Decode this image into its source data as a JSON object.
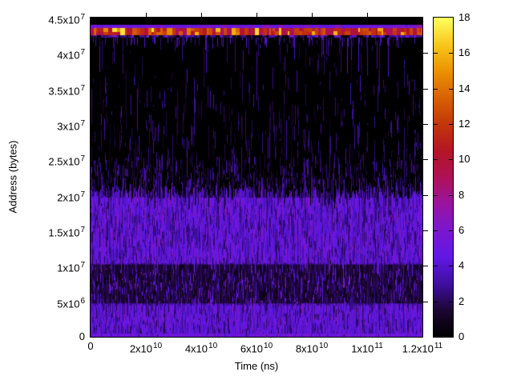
{
  "figure": {
    "background": "#ffffff",
    "text_color": "#000000"
  },
  "chart_data": {
    "type": "heatmap",
    "title": "",
    "xlabel": "Time (ns)",
    "ylabel": "Address (bytes)",
    "xlim": [
      0,
      120000000000
    ],
    "ylim": [
      0,
      45000000
    ],
    "zlim": [
      0,
      18
    ],
    "grid": false,
    "legend_position": "right-colorbar",
    "x_ticks": [
      {
        "value": 0,
        "text": "0",
        "sup": ""
      },
      {
        "value": 20000000000,
        "text": "2x10",
        "sup": "10"
      },
      {
        "value": 40000000000,
        "text": "4x10",
        "sup": "10"
      },
      {
        "value": 60000000000,
        "text": "6x10",
        "sup": "10"
      },
      {
        "value": 80000000000,
        "text": "8x10",
        "sup": "10"
      },
      {
        "value": 100000000000,
        "text": "1x10",
        "sup": "11"
      },
      {
        "value": 120000000000,
        "text": "1.2x10",
        "sup": "11"
      }
    ],
    "y_ticks": [
      {
        "value": 0,
        "text": "0",
        "sup": ""
      },
      {
        "value": 5000000,
        "text": "5x10",
        "sup": "6"
      },
      {
        "value": 10000000,
        "text": "1x10",
        "sup": "7"
      },
      {
        "value": 15000000,
        "text": "1.5x10",
        "sup": "7"
      },
      {
        "value": 20000000,
        "text": "2x10",
        "sup": "7"
      },
      {
        "value": 25000000,
        "text": "2.5x10",
        "sup": "7"
      },
      {
        "value": 30000000,
        "text": "3x10",
        "sup": "7"
      },
      {
        "value": 35000000,
        "text": "3.5x10",
        "sup": "7"
      },
      {
        "value": 40000000,
        "text": "4x10",
        "sup": "7"
      },
      {
        "value": 45000000,
        "text": "4.5x10",
        "sup": "7"
      }
    ],
    "colorbar": {
      "ticks": [
        {
          "value": 0,
          "text": "0"
        },
        {
          "value": 2,
          "text": "2"
        },
        {
          "value": 4,
          "text": "4"
        },
        {
          "value": 6,
          "text": "6"
        },
        {
          "value": 8,
          "text": "8"
        },
        {
          "value": 10,
          "text": "10"
        },
        {
          "value": 12,
          "text": "12"
        },
        {
          "value": 14,
          "text": "14"
        },
        {
          "value": 16,
          "text": "16"
        },
        {
          "value": 18,
          "text": "18"
        }
      ],
      "palette": [
        {
          "v": 0,
          "c": "#000000"
        },
        {
          "v": 1.5,
          "c": "#1c0633"
        },
        {
          "v": 3,
          "c": "#3f0fa0"
        },
        {
          "v": 4.5,
          "c": "#6118e6"
        },
        {
          "v": 6,
          "c": "#7b16cf"
        },
        {
          "v": 7.5,
          "c": "#9a14a0"
        },
        {
          "v": 9,
          "c": "#ae1155"
        },
        {
          "v": 10.5,
          "c": "#b41425"
        },
        {
          "v": 12,
          "c": "#c33709"
        },
        {
          "v": 13.5,
          "c": "#d76205"
        },
        {
          "v": 15,
          "c": "#eb9302"
        },
        {
          "v": 16.5,
          "c": "#f8c81c"
        },
        {
          "v": 18,
          "c": "#ffff60"
        }
      ]
    },
    "noise_seed": 7,
    "regions": [
      {
        "type": "streaks",
        "name": "mid-sparse-streaks",
        "n": 620,
        "top_min": 22200000,
        "top_max": 42000000,
        "bias": 2.0,
        "len_min": 250000,
        "len_max": 3200000,
        "long_prob": 0.12,
        "long_mult": 2.6,
        "v_min": 1.0,
        "v_max": 3.2,
        "width": 1
      },
      {
        "type": "streaks",
        "name": "lower-sparse-stubs",
        "n": 480,
        "top_min": 20300000,
        "top_max": 25500000,
        "bias": 1.5,
        "len_min": 250000,
        "len_max": 2000000,
        "long_prob": 0.06,
        "long_mult": 2,
        "v_min": 1.0,
        "v_max": 3.6,
        "width": 1
      },
      {
        "type": "columns",
        "name": "dense-region",
        "a1_base": 20300000,
        "a1_jitter": 2300000,
        "chunk_min": 6,
        "chunk_max": 24,
        "v_min": 1.8,
        "v_max": 4.3,
        "bright_prob": 0.22,
        "bright_v_min": 4.0,
        "bright_v_max": 6.2
      },
      {
        "type": "overlay",
        "name": "dark-band",
        "a0": 4700000,
        "a1": 10200000,
        "p": 0.78,
        "chunk_min": 4,
        "chunk_max": 13,
        "v_min": 0.5,
        "v_max": 2.3
      },
      {
        "type": "overlay",
        "name": "bright-band-low",
        "a0": 300000,
        "a1": 4400000,
        "p": 0.5,
        "chunk_min": 4,
        "chunk_max": 11,
        "v_min": 3.6,
        "v_max": 5.9
      },
      {
        "type": "overlay",
        "name": "bright-band-mid",
        "a0": 10400000,
        "a1": 19600000,
        "p": 0.45,
        "chunk_min": 5,
        "chunk_max": 15,
        "v_min": 3.8,
        "v_max": 6.1
      },
      {
        "type": "dots",
        "name": "magenta-specks",
        "n": 240,
        "a0": 200000,
        "a1": 21500000,
        "v_min": 6.4,
        "v_max": 8.2,
        "w": 1,
        "h": 2
      },
      {
        "type": "overlay",
        "name": "bottom-edge-glow",
        "a0": 0,
        "a1": 450000,
        "p": 0.9,
        "chunk_min": 3,
        "chunk_max": 8,
        "v_min": 4.0,
        "v_max": 6.3
      },
      {
        "type": "hband",
        "name": "hot-band-top-edge",
        "a0": 43550000,
        "a1": 43990000,
        "p": 1,
        "chunk_min": 3,
        "chunk_max": 8,
        "v_min": 4.3,
        "v_max": 5.9,
        "hi_prob": 0.06,
        "hi_v_min": 6.2,
        "hi_v_max": 7.2
      },
      {
        "type": "hband",
        "name": "hot-band",
        "a0": 42550000,
        "a1": 43550000,
        "p": 1,
        "chunk_min": 2,
        "chunk_max": 6,
        "v_min": 8.4,
        "v_max": 13.6,
        "hi_prob": 0.2,
        "hi_v_min": 14.0,
        "hi_v_max": 17.3
      },
      {
        "type": "hband",
        "name": "hot-band-bottom-edge",
        "a0": 42200000,
        "a1": 42550000,
        "p": 0.72,
        "chunk_min": 2,
        "chunk_max": 5,
        "v_min": 1.6,
        "v_max": 4.6,
        "hi_prob": 0.1,
        "hi_v_min": 5.0,
        "hi_v_max": 6.5
      },
      {
        "type": "streaks",
        "name": "band-drips",
        "n": 120,
        "top_min": 42200000,
        "top_max": 42210000,
        "bias": 1,
        "len_min": 150000,
        "len_max": 1600000,
        "long_prob": 0.17,
        "long_mult": 3.5,
        "v_min": 2.0,
        "v_max": 4.2,
        "width": 1
      }
    ]
  }
}
